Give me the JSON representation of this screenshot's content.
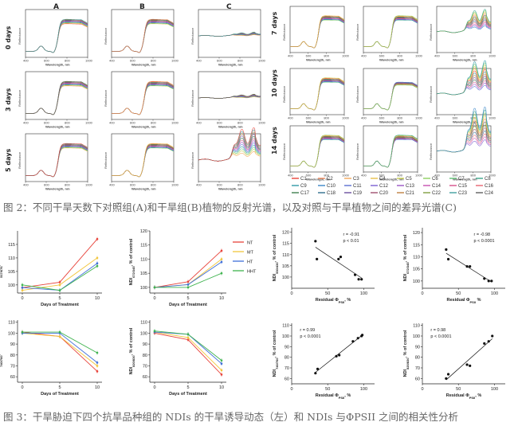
{
  "fig2": {
    "col_labels": [
      "A",
      "B",
      "C"
    ],
    "left_rows": [
      "0 days",
      "3 days",
      "5 days"
    ],
    "right_rows": [
      "7 days",
      "10 days",
      "14 days"
    ],
    "spectrum_xlabel": "Wavelength, nm",
    "spectrum_ylabel": "Reflectance",
    "x_ticks": [
      "400",
      "600",
      "800",
      "1000"
    ],
    "legend": [
      "C1",
      "C2",
      "C3",
      "C4",
      "C5",
      "C6",
      "C7",
      "C8",
      "C9",
      "C10",
      "C11",
      "C12",
      "C13",
      "C14",
      "C15",
      "C16",
      "C17",
      "C18",
      "C19",
      "C20",
      "C21",
      "C22",
      "C23",
      "C24"
    ],
    "legend_colors": [
      "#e8433a",
      "#f08a5d",
      "#f2a65a",
      "#e7c04b",
      "#c9cf4e",
      "#8fcf60",
      "#5fbf73",
      "#3aa58a",
      "#2f9aa6",
      "#3a86c8",
      "#5a6fd1",
      "#7a5fd1",
      "#9a55c4",
      "#c64fb0",
      "#d6508a",
      "#e86470",
      "#3f7f4f",
      "#2f6f8f",
      "#6a4f9f",
      "#9f4f6f",
      "#bf7f3f",
      "#7f9f3f",
      "#3f9f9f",
      "#5f5f5f"
    ],
    "caption": "图 2：不同干旱天数下对照组(A)和干旱组(B)植物的反射光谱，以及对照与干旱植物之间的差异光谱(C)"
  },
  "fig3": {
    "legend": [
      {
        "name": "NT",
        "color": "#e8433a"
      },
      {
        "name": "MT",
        "color": "#f2c63c"
      },
      {
        "name": "HT",
        "color": "#3f6fd8"
      },
      {
        "name": "HHT",
        "color": "#3fb34f"
      }
    ],
    "panels": [
      {
        "ylabel": "NDI517/676 % of control",
        "ylabel_main": "NDI",
        "ylabel_sub": "517/676",
        "ylabel_rest": ", % of control",
        "xlabel": "Days of Treatment",
        "yticks": [
          "100",
          "105",
          "110",
          "115"
        ],
        "xticks": [
          "0",
          "5",
          "10"
        ]
      },
      {
        "ylabel": "NDI672/345 % of control",
        "ylabel_main": "NDI",
        "ylabel_sub": "672/345",
        "ylabel_rest": ", % of control",
        "xlabel": "Days of Treatment",
        "yticks": [
          "100",
          "105",
          "110",
          "115",
          "120"
        ],
        "xticks": [
          "0",
          "5",
          "10"
        ]
      },
      {
        "ylabel": "NDI740/760 % of control",
        "ylabel_main": "NDI",
        "ylabel_sub": "740/760",
        "ylabel_rest": ", % of control",
        "xlabel": "Days of Treatment",
        "yticks": [
          "60",
          "70",
          "80",
          "90",
          "100",
          "110"
        ],
        "xticks": [
          "0",
          "5",
          "10"
        ]
      },
      {
        "ylabel": "NDI820/830 % of control",
        "ylabel_main": "NDI",
        "ylabel_sub": "820/830",
        "ylabel_rest": ", % of control",
        "xlabel": "Days of Treatment",
        "yticks": [
          "60",
          "70",
          "80",
          "90",
          "100",
          "110"
        ],
        "xticks": [
          "0",
          "5",
          "10"
        ]
      }
    ],
    "scatters": [
      {
        "ylabel_main": "NDI",
        "ylabel_sub": "530/430",
        "ylabel_rest": ", % of control",
        "xlabel_main": "Residual Φ",
        "xlabel_sub": "PSII",
        "xlabel_rest": ", %",
        "r": "r = -0.91",
        "p": "p < 0.01",
        "yticks": [
          "100",
          "105",
          "110",
          "115",
          "120"
        ],
        "xticks": [
          "0",
          "50",
          "100"
        ]
      },
      {
        "ylabel_main": "NDI",
        "ylabel_sub": "672/345",
        "ylabel_rest": ", % of control",
        "xlabel_main": "Residual Φ",
        "xlabel_sub": "PSII",
        "xlabel_rest": " %",
        "r": "r = -0.98",
        "p": "p < 0.0001",
        "yticks": [
          "100",
          "105",
          "110",
          "115",
          "120"
        ],
        "xticks": [
          "0",
          "50",
          "100"
        ]
      },
      {
        "ylabel_main": "NDI",
        "ylabel_sub": "740/760",
        "ylabel_rest": ", % of control",
        "xlabel_main": "Residual Φ",
        "xlabel_sub": "PSII",
        "xlabel_rest": ", %",
        "r": "r = 0.99",
        "p": "p < 0.0001",
        "yticks": [
          "60",
          "70",
          "80",
          "90",
          "100",
          "110"
        ],
        "xticks": [
          "0",
          "50",
          "100"
        ]
      },
      {
        "ylabel_main": "NDI",
        "ylabel_sub": "820/830",
        "ylabel_rest": ", % of control",
        "xlabel_main": "Residual Φ",
        "xlabel_sub": "PSII",
        "xlabel_rest": ", %",
        "r": "r = 0.98",
        "p": "p < 0.0001",
        "yticks": [
          "60",
          "70",
          "80",
          "90",
          "100",
          "110"
        ],
        "xticks": [
          "0",
          "50",
          "100"
        ]
      }
    ],
    "caption": "图 3：干旱胁迫下四个抗旱品种组的 NDIs 的干旱诱导动态（左）和 NDIs 与ΦPSII 之间的相关性分析"
  },
  "chart_data": [
    {
      "type": "line",
      "title": "",
      "xlabel": "Days of Treatment",
      "ylabel": "NDI517/676, % of control",
      "x": [
        0,
        5,
        10
      ],
      "ylim": [
        97,
        120
      ],
      "series": [
        {
          "name": "NT",
          "values": [
            99,
            101,
            117
          ]
        },
        {
          "name": "MT",
          "values": [
            98,
            100,
            110
          ]
        },
        {
          "name": "HT",
          "values": [
            99,
            98,
            108
          ]
        },
        {
          "name": "HHT",
          "values": [
            100,
            98,
            107
          ]
        }
      ]
    },
    {
      "type": "line",
      "title": "",
      "xlabel": "Days of Treatment",
      "ylabel": "NDI672/345, % of control",
      "x": [
        0,
        5,
        10
      ],
      "ylim": [
        98,
        120
      ],
      "series": [
        {
          "name": "NT",
          "values": [
            100,
            102,
            113
          ]
        },
        {
          "name": "MT",
          "values": [
            100,
            101,
            110
          ]
        },
        {
          "name": "HT",
          "values": [
            100,
            101,
            109
          ]
        },
        {
          "name": "HHT",
          "values": [
            100,
            100,
            105
          ]
        }
      ]
    },
    {
      "type": "line",
      "title": "",
      "xlabel": "Days of Treatment",
      "ylabel": "NDI740/760, % of control",
      "x": [
        0,
        5,
        10
      ],
      "ylim": [
        55,
        112
      ],
      "series": [
        {
          "name": "NT",
          "values": [
            101,
            97,
            65
          ]
        },
        {
          "name": "MT",
          "values": [
            100,
            97,
            70
          ]
        },
        {
          "name": "HT",
          "values": [
            100,
            100,
            73
          ]
        },
        {
          "name": "HHT",
          "values": [
            101,
            101,
            82
          ]
        }
      ]
    },
    {
      "type": "line",
      "title": "",
      "xlabel": "Days of Treatment",
      "ylabel": "NDI820/830, % of control",
      "x": [
        0,
        5,
        10
      ],
      "ylim": [
        55,
        112
      ],
      "series": [
        {
          "name": "NT",
          "values": [
            100,
            94,
            62
          ]
        },
        {
          "name": "MT",
          "values": [
            101,
            96,
            66
          ]
        },
        {
          "name": "HT",
          "values": [
            101,
            99,
            72
          ]
        },
        {
          "name": "HHT",
          "values": [
            102,
            99,
            75
          ]
        }
      ]
    },
    {
      "type": "scatter",
      "xlabel": "Residual ΦPSII, %",
      "ylabel": "NDI530/430, % of control",
      "xlim": [
        0,
        115
      ],
      "ylim": [
        95,
        122
      ],
      "x": [
        33,
        35,
        65,
        68,
        88,
        93,
        97
      ],
      "y": [
        116,
        108,
        108,
        109,
        101,
        99,
        99
      ]
    },
    {
      "type": "scatter",
      "xlabel": "Residual ΦPSII %",
      "ylabel": "NDI672/345, % of control",
      "xlim": [
        0,
        115
      ],
      "ylim": [
        97,
        122
      ],
      "x": [
        33,
        36,
        62,
        66,
        86,
        92,
        96
      ],
      "y": [
        113,
        109,
        106,
        106,
        101,
        100,
        100
      ]
    },
    {
      "type": "scatter",
      "xlabel": "Residual ΦPSII, %",
      "ylabel": "NDI740/760, % of control",
      "xlim": [
        0,
        115
      ],
      "ylim": [
        55,
        112
      ],
      "x": [
        33,
        36,
        62,
        66,
        85,
        92,
        97,
        98
      ],
      "y": [
        65,
        69,
        81,
        82,
        95,
        98,
        100,
        101
      ]
    },
    {
      "type": "scatter",
      "xlabel": "Residual ΦPSII, %",
      "ylabel": "NDI820/830, % of control",
      "xlim": [
        0,
        115
      ],
      "ylim": [
        55,
        112
      ],
      "x": [
        33,
        36,
        62,
        66,
        86,
        92,
        97
      ],
      "y": [
        60,
        64,
        73,
        72,
        93,
        95,
        100
      ]
    }
  ]
}
